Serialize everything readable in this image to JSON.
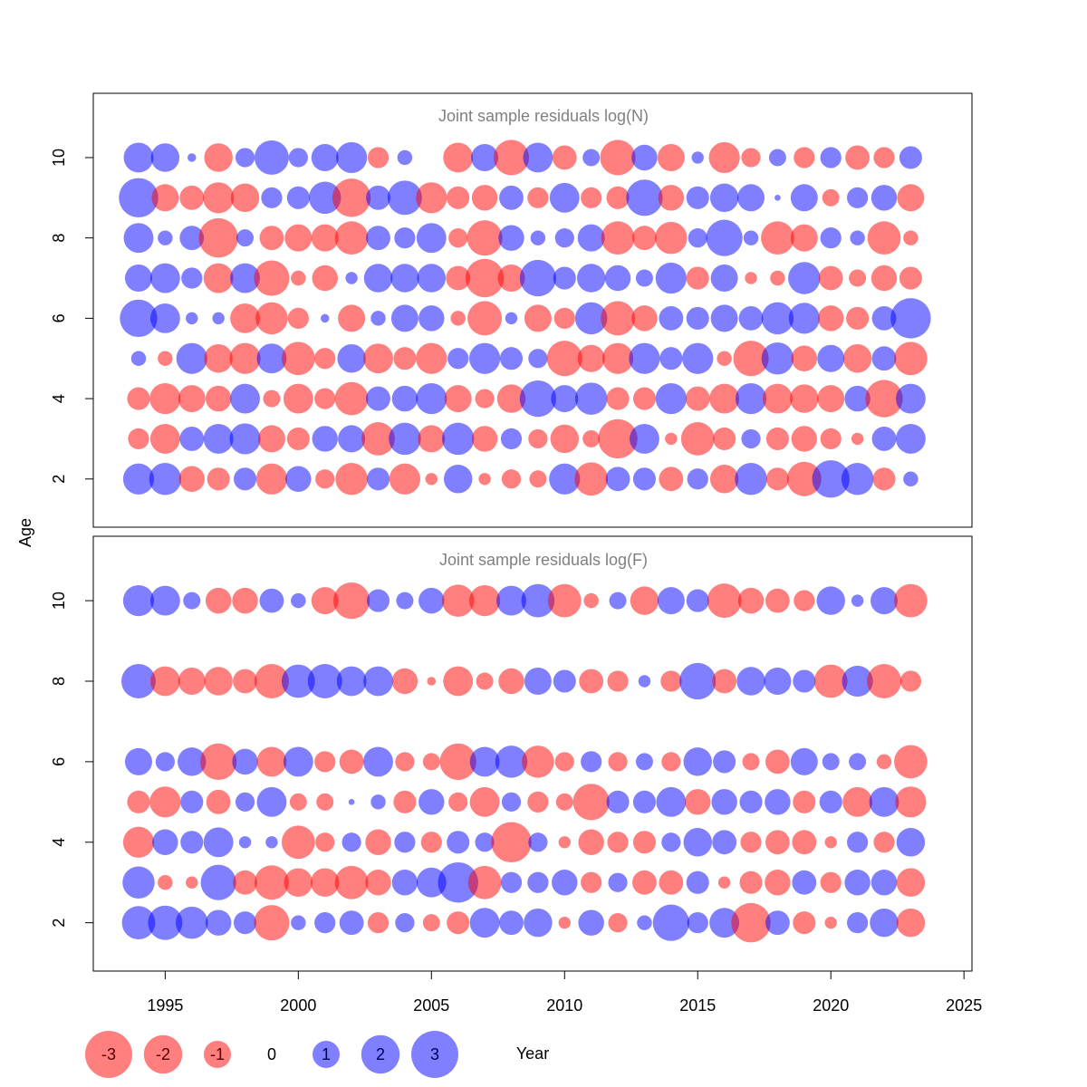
{
  "chart_data": {
    "type": "bubble",
    "xlabel": "Year",
    "ylabel": "Age",
    "xlim": [
      1992.3,
      2025.3
    ],
    "ylim": [
      0.8,
      11.6
    ],
    "x_ticks": [
      1995,
      2000,
      2005,
      2010,
      2015,
      2020,
      2025
    ],
    "y_ticks": [
      2,
      4,
      6,
      8,
      10
    ],
    "years": [
      1994,
      1995,
      1996,
      1997,
      1998,
      1999,
      2000,
      2001,
      2002,
      2003,
      2004,
      2005,
      2006,
      2007,
      2008,
      2009,
      2010,
      2011,
      2012,
      2013,
      2014,
      2015,
      2016,
      2017,
      2018,
      2019,
      2020,
      2021,
      2022,
      2023
    ],
    "colors": {
      "negative": "#ff0000",
      "positive": "#0000ff",
      "opacity": 0.5
    },
    "panels": [
      {
        "title": "Joint sample residuals log(N)",
        "ages": [
          2,
          3,
          4,
          5,
          6,
          7,
          8,
          9,
          10
        ],
        "residuals": {
          "10": [
            1.2,
            1.1,
            0.1,
            -1.1,
            0.5,
            1.6,
            0.5,
            1.0,
            1.3,
            -0.6,
            0.3,
            0.0,
            -1.2,
            1.0,
            -1.7,
            1.2,
            -0.8,
            0.4,
            -1.7,
            0.9,
            -1.0,
            0.2,
            -1.3,
            -0.5,
            0.4,
            -0.6,
            0.6,
            -0.8,
            -0.6,
            0.7
          ],
          "9": [
            2.1,
            -1.0,
            -0.8,
            -1.3,
            -1.1,
            0.6,
            0.7,
            1.4,
            -2.0,
            0.8,
            1.6,
            -1.3,
            -0.7,
            -0.9,
            0.8,
            -0.6,
            1.2,
            -0.6,
            -0.7,
            1.8,
            -0.9,
            0.7,
            1.1,
            1.0,
            0.05,
            1.0,
            -0.4,
            0.6,
            0.9,
            -1.0
          ],
          "8": [
            1.2,
            0.3,
            0.8,
            -2.1,
            0.4,
            -0.8,
            -1.0,
            -1.0,
            -1.5,
            0.8,
            0.6,
            1.2,
            -0.5,
            -1.7,
            0.9,
            0.3,
            0.5,
            1.0,
            -1.5,
            -0.8,
            -1.4,
            0.5,
            1.8,
            0.3,
            -1.5,
            -1.0,
            0.6,
            0.3,
            -1.5,
            -0.3
          ],
          "7": [
            1.0,
            1.2,
            0.6,
            -1.2,
            1.2,
            -1.7,
            -0.3,
            -0.9,
            0.2,
            1.1,
            1.1,
            1.1,
            -0.8,
            -2.0,
            -1.0,
            1.8,
            0.7,
            1.1,
            0.9,
            0.4,
            1.3,
            -0.7,
            1.0,
            -0.2,
            -0.3,
            1.4,
            -0.8,
            -0.4,
            -0.9,
            -0.7
          ],
          "6": [
            1.9,
            1.2,
            0.2,
            0.2,
            -1.2,
            -1.4,
            -0.6,
            0.1,
            -1.0,
            0.3,
            1.0,
            0.9,
            -0.3,
            -1.6,
            0.2,
            -1.0,
            -0.6,
            1.4,
            -1.6,
            -0.9,
            0.8,
            0.7,
            1.0,
            0.8,
            1.4,
            1.3,
            -0.9,
            -0.7,
            0.8,
            2.2
          ],
          "5": [
            0.3,
            -0.3,
            1.3,
            -1.1,
            -1.3,
            1.2,
            -1.5,
            -0.6,
            1.1,
            -1.2,
            -0.7,
            -1.3,
            0.6,
            1.3,
            0.7,
            0.5,
            -1.7,
            -1.0,
            -1.3,
            1.3,
            0.7,
            1.3,
            -0.3,
            -1.7,
            1.4,
            -0.9,
            1.0,
            -1.1,
            0.8,
            -1.5
          ],
          "4": [
            -0.7,
            -1.3,
            -1.0,
            -0.9,
            1.2,
            -0.4,
            -1.2,
            -0.6,
            -1.5,
            0.8,
            0.9,
            1.3,
            -1.0,
            -0.5,
            -1.1,
            1.8,
            1.0,
            1.4,
            -0.7,
            -0.7,
            1.3,
            -0.8,
            -1.2,
            1.3,
            -1.2,
            -1.1,
            -1.0,
            0.9,
            -1.9,
            1.2
          ],
          "3": [
            -0.6,
            -1.2,
            0.8,
            1.2,
            1.3,
            -1.0,
            -0.7,
            0.9,
            1.0,
            -1.5,
            1.4,
            -1.0,
            1.4,
            -0.9,
            0.6,
            -0.5,
            -1.1,
            -0.4,
            -2.1,
            1.2,
            -0.2,
            -1.5,
            -0.7,
            0.5,
            -0.7,
            -0.9,
            -0.6,
            -0.2,
            0.8,
            1.2
          ],
          "2": [
            1.3,
            1.4,
            -0.9,
            -0.7,
            0.7,
            -1.3,
            0.9,
            -0.5,
            -1.4,
            0.7,
            -1.3,
            -0.2,
            1.1,
            -0.2,
            -0.5,
            -0.4,
            1.3,
            -1.5,
            0.8,
            0.7,
            -0.8,
            0.6,
            -1.1,
            1.4,
            -0.7,
            -1.6,
            1.9,
            1.4,
            -0.7,
            0.3
          ]
        }
      },
      {
        "title": "Joint sample residuals log(F)",
        "ages": [
          2,
          3,
          4,
          5,
          6,
          8,
          10
        ],
        "residuals": {
          "10": [
            1.3,
            1.2,
            0.4,
            -0.9,
            -0.9,
            0.8,
            0.3,
            -1.0,
            -1.8,
            0.7,
            0.4,
            0.9,
            -1.4,
            -1.3,
            1.2,
            1.5,
            -1.5,
            -0.3,
            0.4,
            -1.1,
            1.0,
            0.7,
            -1.6,
            -0.9,
            -0.8,
            -0.6,
            1.1,
            0.2,
            1.0,
            -1.5
          ],
          "8": [
            1.6,
            -1.2,
            -1.0,
            -1.1,
            -0.8,
            -1.6,
            1.5,
            1.6,
            1.2,
            1.2,
            -0.9,
            -0.1,
            -1.2,
            -0.4,
            -0.9,
            1.0,
            0.7,
            -0.8,
            -0.6,
            0.2,
            -0.6,
            1.8,
            -0.8,
            1.1,
            1.0,
            0.7,
            -1.5,
            1.3,
            -1.6,
            -0.6
          ],
          "6": [
            1.0,
            0.5,
            1.1,
            -1.8,
            0.9,
            -1.2,
            1.2,
            -0.6,
            -0.8,
            1.2,
            -0.5,
            -0.4,
            -1.8,
            1.2,
            1.4,
            -1.4,
            -0.5,
            0.6,
            -0.5,
            0.4,
            -0.5,
            1.1,
            0.7,
            -0.4,
            -0.8,
            1.0,
            0.4,
            0.4,
            -0.3,
            -1.5
          ],
          "5": [
            -0.7,
            -1.3,
            0.7,
            -0.8,
            0.5,
            1.2,
            -0.4,
            -0.4,
            0.05,
            0.3,
            -0.7,
            0.9,
            -0.5,
            -1.2,
            0.5,
            -0.6,
            -0.4,
            -1.8,
            0.7,
            0.7,
            1.2,
            -0.9,
            0.9,
            0.7,
            0.9,
            -0.7,
            0.7,
            -1.2,
            1.2,
            -1.3
          ],
          "4": [
            -1.3,
            0.9,
            0.7,
            1.2,
            0.2,
            0.2,
            -1.5,
            -0.5,
            0.5,
            -0.9,
            0.6,
            -0.6,
            0.7,
            0.5,
            -2.2,
            0.5,
            -0.2,
            -0.9,
            -0.6,
            -0.7,
            0.5,
            1.1,
            0.8,
            -0.6,
            -0.8,
            -0.8,
            -0.2,
            0.6,
            -0.6,
            1.1
          ],
          "3": [
            1.4,
            -0.3,
            -0.2,
            1.7,
            -0.8,
            -1.6,
            -1.1,
            -1.1,
            -1.5,
            -0.9,
            0.9,
            1.2,
            2.2,
            -1.5,
            0.6,
            0.6,
            0.9,
            -0.6,
            0.5,
            -0.8,
            -0.8,
            0.7,
            -0.2,
            -0.7,
            -0.9,
            0.8,
            -0.6,
            0.9,
            0.9,
            -1.1
          ],
          "2": [
            1.5,
            1.6,
            1.4,
            0.9,
            0.7,
            -1.7,
            0.3,
            0.6,
            0.8,
            -0.6,
            0.5,
            -0.4,
            -0.7,
            1.2,
            0.8,
            1.1,
            -0.2,
            0.9,
            -0.5,
            0.3,
            1.8,
            0.6,
            1.2,
            -2.1,
            0.8,
            -0.7,
            -0.2,
            0.6,
            1.1,
            -1.1
          ]
        }
      }
    ],
    "legend": {
      "entries": [
        {
          "label": "-3",
          "value": -3
        },
        {
          "label": "-2",
          "value": -2
        },
        {
          "label": "-1",
          "value": -1
        },
        {
          "label": "0",
          "value": 0
        },
        {
          "label": "1",
          "value": 1
        },
        {
          "label": "2",
          "value": 2
        },
        {
          "label": "3",
          "value": 3
        }
      ]
    }
  }
}
